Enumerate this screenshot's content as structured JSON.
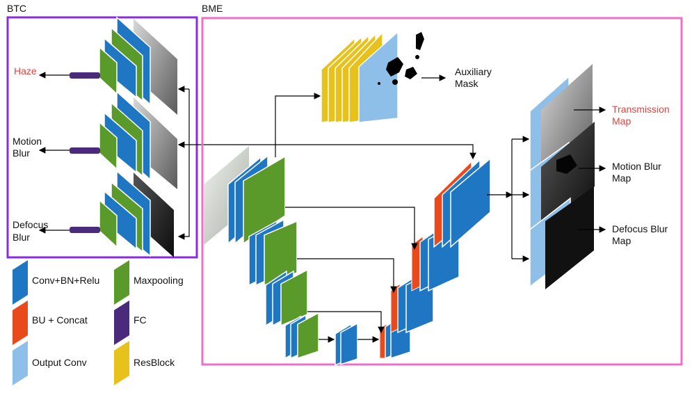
{
  "btc": {
    "title": "BTC",
    "outputs": {
      "haze": "Haze",
      "motion_blur": [
        "Motion",
        "Blur"
      ],
      "defocus_blur": [
        "Defocus",
        "Blur"
      ]
    }
  },
  "bme": {
    "title": "BME",
    "auxiliary_mask": [
      "Auxiliary",
      "Mask"
    ],
    "transmission_map": [
      "Transmission",
      "Map"
    ],
    "motion_blur_map": [
      "Motion Blur",
      "Map"
    ],
    "defocus_blur_map": [
      "Defocus Blur",
      "Map"
    ]
  },
  "legend": {
    "conv": "Conv+BN+Relu",
    "maxpool": "Maxpooling",
    "bu_concat": "BU + Concat",
    "fc": "FC",
    "output_conv": "Output Conv",
    "resblock": "ResBlock"
  },
  "colors": {
    "conv": "#1f77c4",
    "maxpool": "#5a9a2a",
    "bu_concat": "#e84a1c",
    "fc": "#4a2a7a",
    "output_conv": "#8dbfe8",
    "resblock": "#e8c21c",
    "btc_border": "#8a2be2",
    "bme_border": "#ee6fc8",
    "highlight_text": "#e8413c"
  }
}
